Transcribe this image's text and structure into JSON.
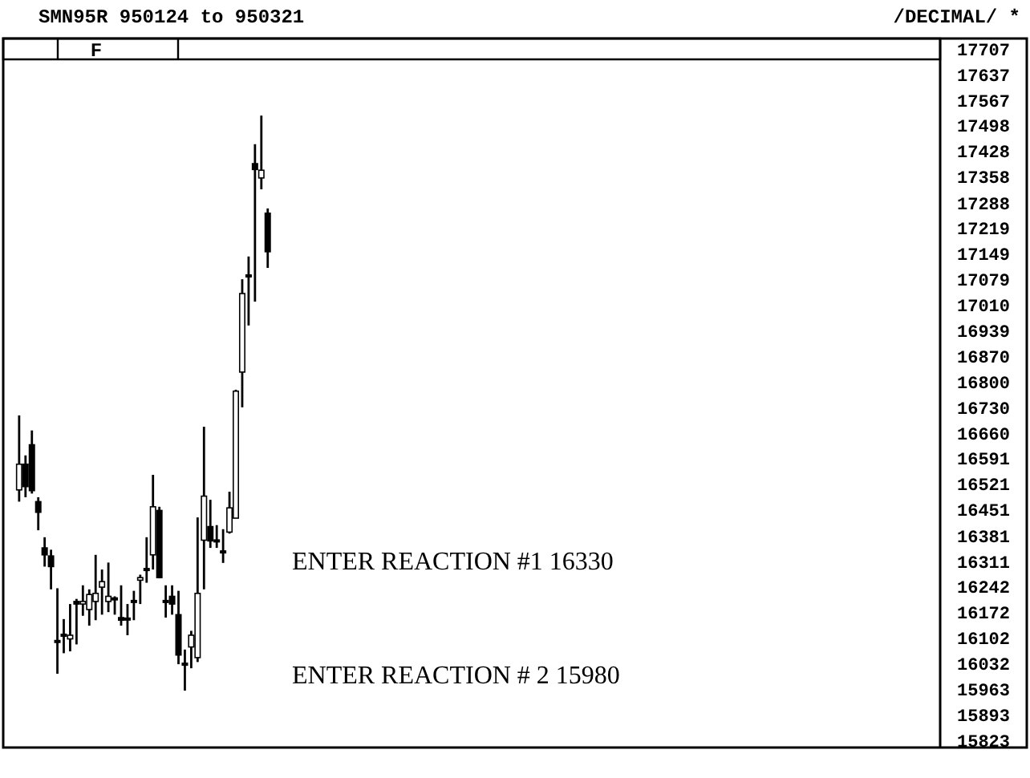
{
  "chart_data": {
    "type": "candlestick",
    "title": "SMN95R  950124 to 950321",
    "color": "#000000",
    "grid": false,
    "annotations": [
      "/DECIMAL/  *",
      "F",
      "ENTER REACTION #1 16330",
      "ENTER REACTION # 2 15980"
    ],
    "categories": [
      null,
      null,
      null,
      null,
      null,
      null,
      null,
      null,
      null,
      null,
      null,
      null,
      null,
      null,
      null,
      null,
      null,
      null,
      null,
      null,
      null,
      null,
      null,
      null,
      null,
      null,
      null,
      null,
      null,
      null,
      null,
      null,
      null,
      null,
      null,
      null,
      null,
      null,
      null,
      null,
      null,
      null,
      null,
      null,
      null,
      null,
      null,
      null,
      null,
      null,
      null,
      null,
      null,
      null,
      null,
      null,
      null,
      null,
      null,
      null,
      null,
      null,
      null,
      null,
      null,
      null,
      null,
      null,
      null,
      null,
      null,
      null,
      null,
      null,
      null,
      null,
      null,
      null,
      null,
      null,
      null,
      null,
      null,
      null,
      null,
      null,
      null,
      null,
      null,
      null,
      null,
      null,
      null,
      null,
      null,
      null,
      null,
      null,
      null,
      null,
      null,
      null,
      null,
      null,
      null,
      null,
      null,
      null,
      null,
      null,
      null,
      null,
      null,
      null,
      null,
      null,
      null,
      null,
      null,
      null,
      null,
      null,
      null,
      null,
      null,
      null,
      null,
      null,
      null,
      null,
      null,
      null,
      null,
      null,
      null,
      null,
      null,
      null,
      null,
      null,
      null,
      null,
      null,
      null,
      null,
      null,
      null
    ],
    "ohlc": [
      null,
      null,
      [
        16507,
        16710,
        16475,
        16577
      ],
      [
        16577,
        16601,
        16487,
        16516
      ],
      [
        16630,
        16669,
        16497,
        16505
      ],
      [
        16475,
        16487,
        16397,
        16446
      ],
      [
        16349,
        16378,
        16298,
        16330
      ],
      [
        16327,
        16344,
        16236,
        16298
      ],
      [
        16094,
        16239,
        16006,
        16094
      ],
      [
        16111,
        16155,
        16062,
        16111
      ],
      [
        16101,
        16196,
        16067,
        16111
      ],
      [
        16203,
        16210,
        16086,
        16196
      ],
      [
        16196,
        16247,
        16164,
        16203
      ],
      [
        16181,
        16236,
        16137,
        16222
      ],
      [
        16203,
        16330,
        16152,
        16225
      ],
      [
        16242,
        16290,
        16167,
        16257
      ],
      [
        16203,
        16309,
        16174,
        16217
      ],
      [
        16210,
        16217,
        16167,
        16210
      ],
      [
        16159,
        16247,
        16137,
        16152
      ],
      [
        16155,
        16196,
        16111,
        16155
      ],
      [
        16203,
        16232,
        16152,
        16203
      ],
      [
        16261,
        16276,
        16196,
        16268
      ],
      [
        16290,
        16378,
        16254,
        16290
      ],
      [
        16330,
        16548,
        16290,
        16461
      ],
      [
        16451,
        16461,
        16266,
        16268
      ],
      [
        16203,
        16247,
        16159,
        16203
      ],
      [
        16217,
        16247,
        16167,
        16196
      ],
      [
        16167,
        16232,
        16032,
        16057
      ],
      [
        16032,
        16072,
        15960,
        16032
      ],
      [
        16079,
        16123,
        16021,
        16111
      ],
      [
        16050,
        16432,
        16038,
        16225
      ],
      [
        16370,
        16679,
        16236,
        16490
      ],
      [
        16407,
        16480,
        16349,
        16368
      ],
      [
        16368,
        16411,
        16349,
        16368
      ],
      [
        16338,
        16400,
        16308,
        16338
      ],
      [
        16392,
        16502,
        16388,
        16458
      ],
      [
        16430,
        16780,
        16430,
        16776
      ],
      [
        16828,
        17081,
        16732,
        17042
      ],
      [
        17090,
        17143,
        16955,
        17090
      ],
      [
        17396,
        17449,
        17020,
        17380
      ],
      [
        17357,
        17527,
        17326,
        17378
      ],
      [
        17261,
        17274,
        17112,
        17156
      ],
      null,
      null,
      null,
      null,
      null,
      null,
      null,
      null,
      null,
      null,
      null,
      null,
      null,
      null,
      null,
      null,
      null,
      null,
      null,
      null,
      null,
      null,
      null,
      null,
      null,
      null,
      null,
      null,
      null,
      null,
      null,
      null,
      null,
      null,
      null,
      null,
      null,
      null,
      null,
      null,
      null,
      null,
      null,
      null,
      null,
      null,
      null,
      null,
      null,
      null,
      null,
      null,
      null,
      null,
      null,
      null,
      null,
      null,
      null,
      null,
      null,
      null,
      null,
      null,
      null,
      null,
      null,
      null,
      null,
      null,
      null,
      null,
      null,
      null,
      null,
      null,
      null,
      null,
      null,
      null,
      null,
      null,
      null,
      null,
      null,
      null,
      null,
      null,
      null,
      null,
      null,
      null,
      null,
      null,
      null,
      null,
      null,
      null,
      null,
      null,
      null,
      null,
      null,
      null,
      null
    ],
    "ylim": [
      15805,
      17737
    ],
    "yticks": [
      15823,
      15893,
      15963,
      16032,
      16102,
      16172,
      16242,
      16311,
      16381,
      16451,
      16521,
      16591,
      16660,
      16730,
      16800,
      16870,
      16939,
      17010,
      17079,
      17149,
      17219,
      17288,
      17358,
      17428,
      17498,
      17567,
      17637,
      17707
    ]
  }
}
